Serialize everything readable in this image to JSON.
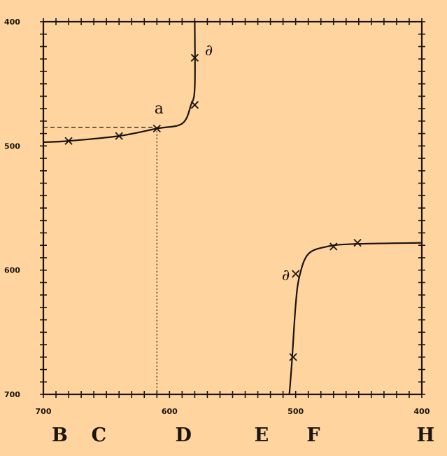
{
  "chart_data": {
    "type": "line",
    "title": "",
    "xlabel": "",
    "ylabel": "",
    "xlim": [
      700,
      400
    ],
    "ylim": [
      400,
      700
    ],
    "x_ticks": [
      "700",
      "600",
      "500",
      "400"
    ],
    "y_ticks": [
      "400",
      "500",
      "600",
      "700"
    ],
    "fraunhofer_lines": [
      {
        "label": "B",
        "x": 687
      },
      {
        "label": "C",
        "x": 656
      },
      {
        "label": "D",
        "x": 589
      },
      {
        "label": "E",
        "x": 527
      },
      {
        "label": "F",
        "x": 486
      },
      {
        "label": "H",
        "x": 397
      }
    ],
    "series": [
      {
        "points": [
          [
            700,
            497
          ],
          [
            680,
            496
          ],
          [
            640,
            492
          ],
          [
            610,
            486
          ],
          [
            590,
            482
          ],
          [
            583,
            467
          ],
          [
            580,
            453
          ],
          [
            580,
            400
          ]
        ],
        "markers": [
          [
            680,
            496
          ],
          [
            640,
            492
          ],
          [
            610,
            486
          ],
          [
            580,
            467
          ],
          [
            580,
            429
          ]
        ]
      },
      {
        "points": [
          [
            505,
            700
          ],
          [
            503,
            674
          ],
          [
            500,
            628
          ],
          [
            497,
            605
          ],
          [
            490,
            587
          ],
          [
            475,
            581
          ],
          [
            455,
            579
          ],
          [
            400,
            578
          ]
        ],
        "markers": [
          [
            502,
            670
          ],
          [
            500,
            603
          ],
          [
            470,
            581
          ],
          [
            451,
            578
          ]
        ]
      }
    ],
    "guides": {
      "horizontal": {
        "y": 485,
        "from_x": 700,
        "to_x": 610
      },
      "vertical": {
        "x": 610,
        "from_y": 485,
        "to_y": 700
      }
    },
    "annotations": [
      {
        "text": "∂",
        "x": 572,
        "y": 427
      },
      {
        "text": "a",
        "x": 612,
        "y": 474
      },
      {
        "text": "∂",
        "x": 511,
        "y": 608
      }
    ],
    "grid": false
  }
}
